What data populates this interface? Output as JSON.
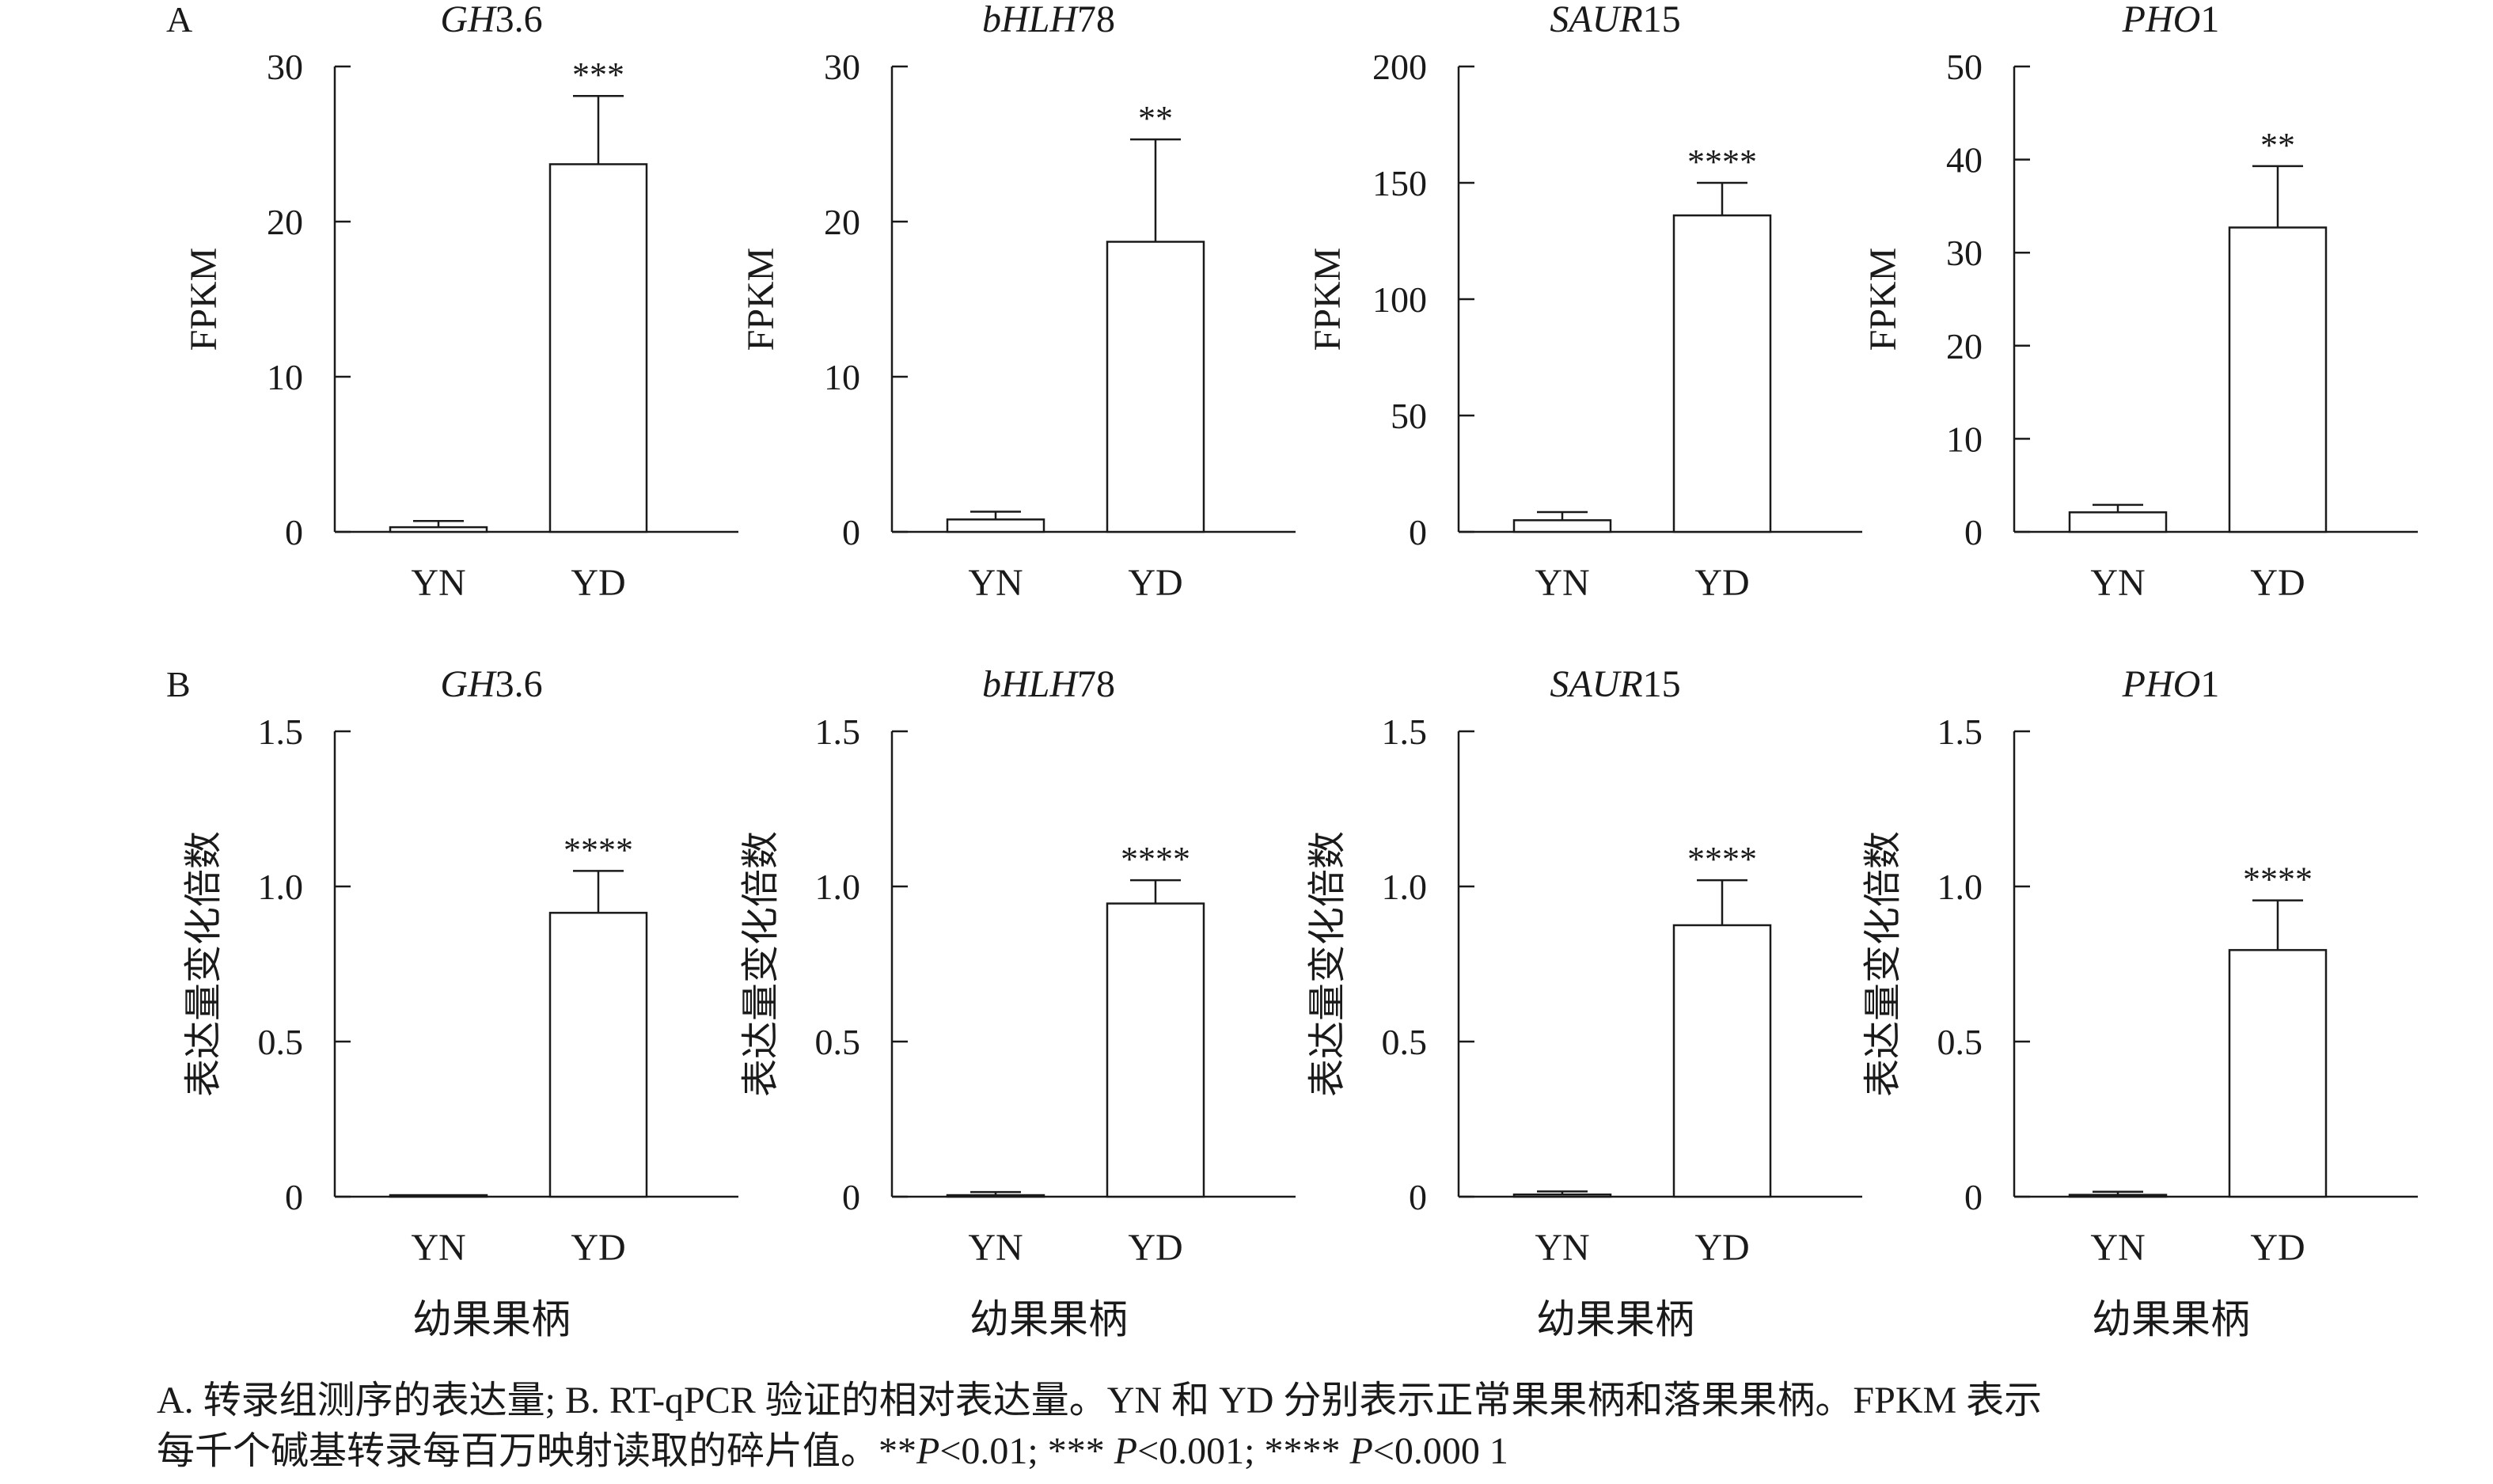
{
  "chart_data": [
    {
      "type": "bar",
      "panel": "A",
      "title": "GH3.6",
      "title_italic": "GH",
      "title_rest": "3.6",
      "ylabel": "FPKM",
      "xlabel": "",
      "categories": [
        "YN",
        "YD"
      ],
      "values": [
        0.3,
        23.7
      ],
      "errors": [
        0.4,
        4.4
      ],
      "ylim": [
        0,
        30
      ],
      "yticks": [
        "0",
        "10",
        "20",
        "30"
      ],
      "significance": "***"
    },
    {
      "type": "bar",
      "panel": "",
      "title": "bHLH78",
      "title_italic": "bHLH",
      "title_rest": "78",
      "ylabel": "FPKM",
      "xlabel": "",
      "categories": [
        "YN",
        "YD"
      ],
      "values": [
        0.8,
        18.7
      ],
      "errors": [
        0.5,
        6.6
      ],
      "ylim": [
        0,
        30
      ],
      "yticks": [
        "0",
        "10",
        "20",
        "30"
      ],
      "significance": "**"
    },
    {
      "type": "bar",
      "panel": "",
      "title": "SAUR15",
      "title_italic": "SAUR",
      "title_rest": "15",
      "ylabel": "FPKM",
      "xlabel": "",
      "categories": [
        "YN",
        "YD"
      ],
      "values": [
        5,
        136
      ],
      "errors": [
        3.5,
        14
      ],
      "ylim": [
        0,
        200
      ],
      "yticks": [
        "0",
        "50",
        "100",
        "150",
        "200"
      ],
      "significance": "****"
    },
    {
      "type": "bar",
      "panel": "",
      "title": "PHO1",
      "title_italic": "PHO",
      "title_rest": "1",
      "ylabel": "FPKM",
      "xlabel": "",
      "categories": [
        "YN",
        "YD"
      ],
      "values": [
        2.1,
        32.7
      ],
      "errors": [
        0.8,
        6.6
      ],
      "ylim": [
        0,
        50
      ],
      "yticks": [
        "0",
        "10",
        "20",
        "30",
        "40",
        "50"
      ],
      "significance": "**"
    },
    {
      "type": "bar",
      "panel": "B",
      "title": "GH3.6",
      "title_italic": "GH",
      "title_rest": "3.6",
      "ylabel": "表达量变化倍数",
      "xlabel": "幼果果柄",
      "categories": [
        "YN",
        "YD"
      ],
      "values": [
        0.005,
        0.915
      ],
      "errors": [
        0.0,
        0.135
      ],
      "ylim": [
        0,
        1.5
      ],
      "yticks": [
        "0",
        "0.5",
        "1.0",
        "1.5"
      ],
      "significance": "****"
    },
    {
      "type": "bar",
      "panel": "",
      "title": "bHLH78",
      "title_italic": "bHLH",
      "title_rest": "78",
      "ylabel": "表达量变化倍数",
      "xlabel": "幼果果柄",
      "categories": [
        "YN",
        "YD"
      ],
      "values": [
        0.005,
        0.945
      ],
      "errors": [
        0.01,
        0.075
      ],
      "ylim": [
        0,
        1.5
      ],
      "yticks": [
        "0",
        "0.5",
        "1.0",
        "1.5"
      ],
      "significance": "****"
    },
    {
      "type": "bar",
      "panel": "",
      "title": "SAUR15",
      "title_italic": "SAUR",
      "title_rest": "15",
      "ylabel": "表达量变化倍数",
      "xlabel": "幼果果柄",
      "categories": [
        "YN",
        "YD"
      ],
      "values": [
        0.007,
        0.875
      ],
      "errors": [
        0.01,
        0.145
      ],
      "ylim": [
        0,
        1.5
      ],
      "yticks": [
        "0",
        "0.5",
        "1.0",
        "1.5"
      ],
      "significance": "****"
    },
    {
      "type": "bar",
      "panel": "",
      "title": "PHO1",
      "title_italic": "PHO",
      "title_rest": "1",
      "ylabel": "表达量变化倍数",
      "xlabel": "幼果果柄",
      "categories": [
        "YN",
        "YD"
      ],
      "values": [
        0.006,
        0.795
      ],
      "errors": [
        0.01,
        0.16
      ],
      "ylim": [
        0,
        1.5
      ],
      "yticks": [
        "0",
        "0.5",
        "1.0",
        "1.5"
      ],
      "significance": "****"
    }
  ],
  "caption": {
    "line1": "A. 转录组测序的表达量; B. RT-qPCR 验证的相对表达量。YN 和 YD 分别表示正常果果柄和落果果柄。FPKM 表示",
    "line2_prefix": "每千个碱基转录每百万映射读取的碎片值。**",
    "p1": "P",
    "t1": "<0.01; *** ",
    "p2": "P",
    "t2": "<0.001; **** ",
    "p3": "P",
    "t3": "<0.000 1"
  }
}
